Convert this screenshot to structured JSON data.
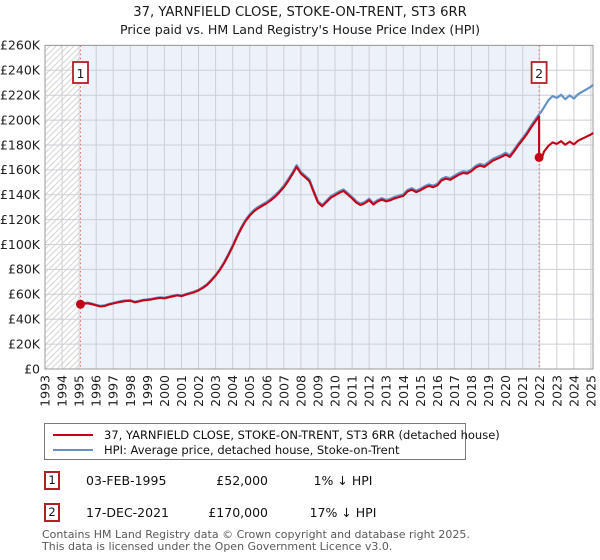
{
  "title": "37, YARNFIELD CLOSE, STOKE-ON-TRENT, ST3 6RR",
  "subtitle": "Price paid vs. HM Land Registry's House Price Index (HPI)",
  "legend": [
    {
      "label": "37, YARNFIELD CLOSE, STOKE-ON-TRENT, ST3 6RR (detached house)",
      "color": "#c40018"
    },
    {
      "label": "HPI: Average price, detached house, Stoke-on-Trent",
      "color": "#6593c6"
    }
  ],
  "sales": [
    {
      "num": "1",
      "date": "03-FEB-1995",
      "price": "£52,000",
      "hpi_note": "1% ↓ HPI"
    },
    {
      "num": "2",
      "date": "17-DEC-2021",
      "price": "£170,000",
      "hpi_note": "17% ↓ HPI"
    }
  ],
  "footer": {
    "line1": "Contains HM Land Registry data © Crown copyright and database right 2025.",
    "line2": "This data is licensed under the Open Government Licence v3.0."
  },
  "chart_data": {
    "type": "line",
    "x_axis": {
      "min": 1993,
      "max": 2025.1
    },
    "y_axis": {
      "min": 0,
      "max": 260000
    },
    "x_ticks": [
      1993,
      1994,
      1995,
      1996,
      1997,
      1998,
      1999,
      2000,
      2001,
      2002,
      2003,
      2004,
      2005,
      2006,
      2007,
      2008,
      2009,
      2010,
      2011,
      2012,
      2013,
      2014,
      2015,
      2016,
      2017,
      2018,
      2019,
      2020,
      2021,
      2022,
      2023,
      2024,
      2025
    ],
    "y_ticks": [
      {
        "value": 0,
        "label": "£0"
      },
      {
        "value": 20000,
        "label": "£20K"
      },
      {
        "value": 40000,
        "label": "£40K"
      },
      {
        "value": 60000,
        "label": "£60K"
      },
      {
        "value": 80000,
        "label": "£80K"
      },
      {
        "value": 100000,
        "label": "£100K"
      },
      {
        "value": 120000,
        "label": "£120K"
      },
      {
        "value": 140000,
        "label": "£140K"
      },
      {
        "value": 160000,
        "label": "£160K"
      },
      {
        "value": 180000,
        "label": "£180K"
      },
      {
        "value": 200000,
        "label": "£200K"
      },
      {
        "value": 220000,
        "label": "£220K"
      },
      {
        "value": 240000,
        "label": "£240K"
      },
      {
        "value": 260000,
        "label": "£260K"
      }
    ],
    "colors": {
      "property": "#c40018",
      "hpi": "#6593c6",
      "dashed_marker_line": "#e46d6d",
      "marker_box_border": "#b02025",
      "shade": "#edf1fa",
      "hatch": "#d4d4d4",
      "grid": "#cccfd6",
      "border": "#9a9a9a"
    },
    "regions": {
      "hatched": [
        1993,
        1995.08
      ],
      "shaded": [
        1995.08,
        2021.96
      ]
    },
    "markers": [
      {
        "label": "1",
        "year": 1995.08,
        "price": 52000
      },
      {
        "label": "2",
        "year": 2021.96,
        "price": 170000
      }
    ],
    "series": [
      {
        "name": "property-price",
        "legend": "37, YARNFIELD CLOSE, STOKE-ON-TRENT, ST3 6RR (detached house)",
        "color": "#c40018",
        "width": 2.1,
        "points": [
          [
            1995.08,
            52000
          ],
          [
            1995.25,
            52500
          ],
          [
            1995.5,
            52800
          ],
          [
            1995.75,
            52100
          ],
          [
            1996,
            51100
          ],
          [
            1996.25,
            50200
          ],
          [
            1996.5,
            50600
          ],
          [
            1996.75,
            51800
          ],
          [
            1997,
            52600
          ],
          [
            1997.25,
            53400
          ],
          [
            1997.5,
            54100
          ],
          [
            1997.75,
            54600
          ],
          [
            1998,
            54800
          ],
          [
            1998.25,
            53600
          ],
          [
            1998.5,
            54200
          ],
          [
            1998.75,
            55100
          ],
          [
            1999,
            55400
          ],
          [
            1999.25,
            55900
          ],
          [
            1999.5,
            56600
          ],
          [
            1999.75,
            57100
          ],
          [
            2000,
            56800
          ],
          [
            2000.25,
            57600
          ],
          [
            2000.5,
            58400
          ],
          [
            2000.75,
            59100
          ],
          [
            2001,
            58600
          ],
          [
            2001.25,
            59700
          ],
          [
            2001.5,
            60700
          ],
          [
            2001.75,
            61700
          ],
          [
            2002,
            63100
          ],
          [
            2002.25,
            65100
          ],
          [
            2002.5,
            67600
          ],
          [
            2002.75,
            71100
          ],
          [
            2003,
            75000
          ],
          [
            2003.25,
            79600
          ],
          [
            2003.5,
            85000
          ],
          [
            2003.75,
            91500
          ],
          [
            2004,
            98400
          ],
          [
            2004.25,
            105900
          ],
          [
            2004.5,
            112800
          ],
          [
            2004.75,
            118800
          ],
          [
            2005,
            123200
          ],
          [
            2005.25,
            126700
          ],
          [
            2005.5,
            129200
          ],
          [
            2005.75,
            131200
          ],
          [
            2006,
            133200
          ],
          [
            2006.25,
            135600
          ],
          [
            2006.5,
            138600
          ],
          [
            2006.75,
            142100
          ],
          [
            2007,
            146000
          ],
          [
            2007.25,
            151000
          ],
          [
            2007.5,
            156500
          ],
          [
            2007.75,
            162400
          ],
          [
            2008,
            157000
          ],
          [
            2008.25,
            154000
          ],
          [
            2008.5,
            151000
          ],
          [
            2008.75,
            142100
          ],
          [
            2009,
            133700
          ],
          [
            2009.25,
            130700
          ],
          [
            2009.5,
            134200
          ],
          [
            2009.75,
            137600
          ],
          [
            2010,
            139600
          ],
          [
            2010.25,
            141600
          ],
          [
            2010.5,
            143100
          ],
          [
            2010.75,
            140100
          ],
          [
            2011,
            137100
          ],
          [
            2011.25,
            133700
          ],
          [
            2011.5,
            131700
          ],
          [
            2011.75,
            133200
          ],
          [
            2012,
            135600
          ],
          [
            2012.25,
            132200
          ],
          [
            2012.5,
            134700
          ],
          [
            2012.75,
            136100
          ],
          [
            2013,
            134700
          ],
          [
            2013.25,
            135600
          ],
          [
            2013.5,
            137100
          ],
          [
            2013.75,
            138100
          ],
          [
            2014,
            139100
          ],
          [
            2014.25,
            142600
          ],
          [
            2014.5,
            144100
          ],
          [
            2014.75,
            142100
          ],
          [
            2015,
            143600
          ],
          [
            2015.25,
            145600
          ],
          [
            2015.5,
            147100
          ],
          [
            2015.75,
            146100
          ],
          [
            2016,
            147600
          ],
          [
            2016.25,
            151500
          ],
          [
            2016.5,
            153000
          ],
          [
            2016.75,
            152000
          ],
          [
            2017,
            154000
          ],
          [
            2017.25,
            156000
          ],
          [
            2017.5,
            157500
          ],
          [
            2017.75,
            157000
          ],
          [
            2018,
            159000
          ],
          [
            2018.25,
            161900
          ],
          [
            2018.5,
            163400
          ],
          [
            2018.75,
            162400
          ],
          [
            2019,
            164900
          ],
          [
            2019.25,
            167400
          ],
          [
            2019.5,
            168900
          ],
          [
            2019.75,
            170400
          ],
          [
            2020,
            172300
          ],
          [
            2020.25,
            170400
          ],
          [
            2020.5,
            174800
          ],
          [
            2020.75,
            179800
          ],
          [
            2021,
            184200
          ],
          [
            2021.25,
            188700
          ],
          [
            2021.5,
            194200
          ],
          [
            2021.75,
            199100
          ],
          [
            2021.96,
            203000
          ],
          [
            2021.96,
            170000
          ],
          [
            2022.08,
            167800
          ],
          [
            2022.25,
            174700
          ],
          [
            2022.5,
            179200
          ],
          [
            2022.75,
            182100
          ],
          [
            2023,
            180900
          ],
          [
            2023.25,
            183000
          ],
          [
            2023.5,
            180100
          ],
          [
            2023.75,
            182600
          ],
          [
            2024,
            180500
          ],
          [
            2024.25,
            183400
          ],
          [
            2024.5,
            185100
          ],
          [
            2024.75,
            186700
          ],
          [
            2025,
            188400
          ],
          [
            2025.1,
            189400
          ]
        ]
      },
      {
        "name": "hpi-average",
        "legend": "HPI: Average price, detached house, Stoke-on-Trent",
        "color": "#6593c6",
        "width": 2.2,
        "points": [
          [
            1995.08,
            52500
          ],
          [
            1995.25,
            53000
          ],
          [
            1995.5,
            53300
          ],
          [
            1995.75,
            52600
          ],
          [
            1996,
            51600
          ],
          [
            1996.25,
            50700
          ],
          [
            1996.5,
            51100
          ],
          [
            1996.75,
            52300
          ],
          [
            1997,
            53100
          ],
          [
            1997.25,
            53900
          ],
          [
            1997.5,
            54600
          ],
          [
            1997.75,
            55100
          ],
          [
            1998,
            55300
          ],
          [
            1998.25,
            54100
          ],
          [
            1998.5,
            54700
          ],
          [
            1998.75,
            55600
          ],
          [
            1999,
            55900
          ],
          [
            1999.25,
            56400
          ],
          [
            1999.5,
            57100
          ],
          [
            1999.75,
            57600
          ],
          [
            2000,
            57300
          ],
          [
            2000.25,
            58100
          ],
          [
            2000.5,
            58900
          ],
          [
            2000.75,
            59600
          ],
          [
            2001,
            59100
          ],
          [
            2001.25,
            60200
          ],
          [
            2001.5,
            61200
          ],
          [
            2001.75,
            62300
          ],
          [
            2002,
            63700
          ],
          [
            2002.25,
            65700
          ],
          [
            2002.5,
            68200
          ],
          [
            2002.75,
            71700
          ],
          [
            2003,
            75700
          ],
          [
            2003.25,
            80300
          ],
          [
            2003.5,
            85800
          ],
          [
            2003.75,
            92300
          ],
          [
            2004,
            99300
          ],
          [
            2004.25,
            106800
          ],
          [
            2004.5,
            113800
          ],
          [
            2004.75,
            119800
          ],
          [
            2005,
            124300
          ],
          [
            2005.25,
            127800
          ],
          [
            2005.5,
            130300
          ],
          [
            2005.75,
            132300
          ],
          [
            2006,
            134300
          ],
          [
            2006.25,
            136800
          ],
          [
            2006.5,
            139800
          ],
          [
            2006.75,
            143300
          ],
          [
            2007,
            147300
          ],
          [
            2007.25,
            152300
          ],
          [
            2007.5,
            157800
          ],
          [
            2007.75,
            163800
          ],
          [
            2008,
            158300
          ],
          [
            2008.25,
            155300
          ],
          [
            2008.5,
            152300
          ],
          [
            2008.75,
            143300
          ],
          [
            2009,
            134800
          ],
          [
            2009.25,
            131800
          ],
          [
            2009.5,
            135300
          ],
          [
            2009.75,
            138800
          ],
          [
            2010,
            140800
          ],
          [
            2010.25,
            142800
          ],
          [
            2010.5,
            144300
          ],
          [
            2010.75,
            141300
          ],
          [
            2011,
            138300
          ],
          [
            2011.25,
            134800
          ],
          [
            2011.5,
            132800
          ],
          [
            2011.75,
            134300
          ],
          [
            2012,
            136800
          ],
          [
            2012.25,
            133300
          ],
          [
            2012.5,
            135800
          ],
          [
            2012.75,
            137300
          ],
          [
            2013,
            135800
          ],
          [
            2013.25,
            136800
          ],
          [
            2013.5,
            138300
          ],
          [
            2013.75,
            139300
          ],
          [
            2014,
            140300
          ],
          [
            2014.25,
            143800
          ],
          [
            2014.5,
            145300
          ],
          [
            2014.75,
            143300
          ],
          [
            2015,
            144800
          ],
          [
            2015.25,
            146800
          ],
          [
            2015.5,
            148300
          ],
          [
            2015.75,
            147300
          ],
          [
            2016,
            148800
          ],
          [
            2016.25,
            152800
          ],
          [
            2016.5,
            154300
          ],
          [
            2016.75,
            153300
          ],
          [
            2017,
            155300
          ],
          [
            2017.25,
            157300
          ],
          [
            2017.5,
            158800
          ],
          [
            2017.75,
            158300
          ],
          [
            2018,
            160300
          ],
          [
            2018.25,
            163300
          ],
          [
            2018.5,
            164800
          ],
          [
            2018.75,
            163800
          ],
          [
            2019,
            166300
          ],
          [
            2019.25,
            168800
          ],
          [
            2019.5,
            170300
          ],
          [
            2019.75,
            171800
          ],
          [
            2020,
            173800
          ],
          [
            2020.25,
            171800
          ],
          [
            2020.5,
            176300
          ],
          [
            2020.75,
            181300
          ],
          [
            2021,
            185800
          ],
          [
            2021.25,
            190300
          ],
          [
            2021.5,
            195800
          ],
          [
            2021.75,
            200800
          ],
          [
            2021.96,
            204700
          ],
          [
            2022.08,
            206500
          ],
          [
            2022.25,
            210300
          ],
          [
            2022.5,
            215800
          ],
          [
            2022.75,
            219300
          ],
          [
            2023,
            217800
          ],
          [
            2023.25,
            220300
          ],
          [
            2023.5,
            216800
          ],
          [
            2023.75,
            219800
          ],
          [
            2024,
            217300
          ],
          [
            2024.25,
            220800
          ],
          [
            2024.5,
            222800
          ],
          [
            2024.75,
            224800
          ],
          [
            2025,
            226800
          ],
          [
            2025.1,
            228000
          ]
        ]
      }
    ]
  }
}
